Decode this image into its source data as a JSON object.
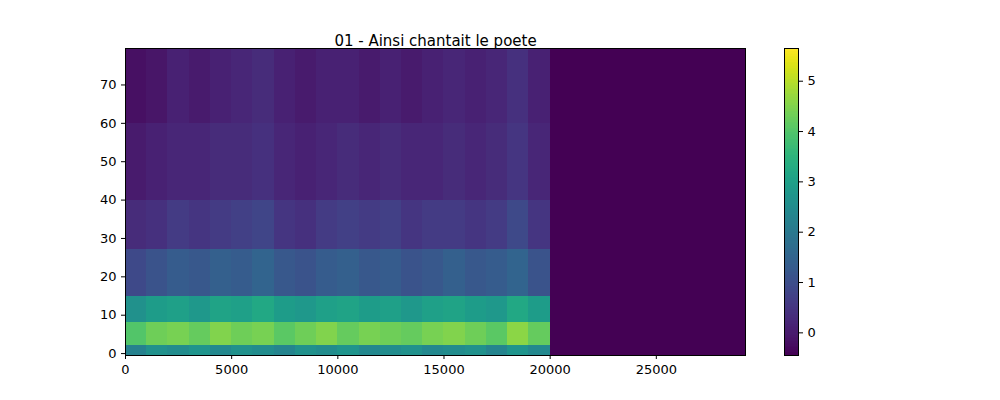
{
  "chart_data": {
    "type": "heatmap",
    "title": "01 - Ainsi chantait le poete",
    "color": "viridis",
    "xlim": [
      0,
      29200
    ],
    "ylim": [
      -0.5,
      79.5
    ],
    "xticks": [
      0,
      5000,
      10000,
      15000,
      20000,
      25000
    ],
    "yticks": [
      0,
      10,
      20,
      30,
      40,
      50,
      60,
      70
    ],
    "x_edges": [
      0,
      1000,
      2000,
      3000,
      4000,
      5000,
      6000,
      7000,
      8000,
      9000,
      10000,
      11000,
      12000,
      13000,
      14000,
      15000,
      16000,
      17000,
      18000,
      19000,
      20000,
      29200
    ],
    "y_edges": [
      -0.5,
      2,
      8,
      15,
      27,
      40,
      60,
      79.5
    ],
    "z": [
      [
        2.2,
        2.6,
        2.5,
        2.7,
        2.4,
        2.6,
        2.5,
        2.3,
        2.6,
        2.5,
        2.7,
        2.4,
        2.5,
        2.6,
        2.4,
        2.5,
        2.6,
        2.3,
        2.7,
        2.4,
        -0.45
      ],
      [
        4.0,
        4.3,
        4.4,
        4.2,
        4.5,
        4.3,
        4.4,
        4.1,
        4.3,
        4.5,
        4.2,
        4.4,
        4.3,
        4.2,
        4.4,
        4.5,
        4.3,
        4.1,
        4.6,
        4.2,
        -0.45
      ],
      [
        2.6,
        2.9,
        3.0,
        2.8,
        3.1,
        3.0,
        3.2,
        2.9,
        2.8,
        3.0,
        3.1,
        2.9,
        3.0,
        2.8,
        3.0,
        3.1,
        2.9,
        2.8,
        3.2,
        2.9,
        -0.45
      ],
      [
        0.9,
        1.1,
        1.3,
        1.2,
        1.4,
        1.3,
        1.5,
        1.2,
        1.1,
        1.3,
        1.4,
        1.2,
        1.3,
        1.1,
        1.2,
        1.4,
        1.2,
        1.3,
        1.5,
        1.1,
        -0.45
      ],
      [
        0.3,
        0.4,
        0.6,
        0.5,
        0.6,
        0.7,
        0.8,
        0.5,
        0.4,
        0.6,
        0.7,
        0.6,
        0.7,
        0.5,
        0.6,
        0.6,
        0.5,
        0.6,
        0.9,
        0.5,
        -0.45
      ],
      [
        0.0,
        0.1,
        0.2,
        0.2,
        0.3,
        0.3,
        0.4,
        0.2,
        0.1,
        0.2,
        0.3,
        0.2,
        0.3,
        0.2,
        0.2,
        0.3,
        0.2,
        0.3,
        0.5,
        0.2,
        -0.45
      ],
      [
        -0.2,
        -0.1,
        0.1,
        0.0,
        0.1,
        0.2,
        0.3,
        0.1,
        0.0,
        0.1,
        0.1,
        0.0,
        0.1,
        0.0,
        0.1,
        0.2,
        0.1,
        0.2,
        0.4,
        0.1,
        -0.45
      ]
    ],
    "colorbar": {
      "range": [
        -0.45,
        5.65
      ],
      "ticks": [
        0,
        1,
        2,
        3,
        4,
        5
      ]
    }
  }
}
